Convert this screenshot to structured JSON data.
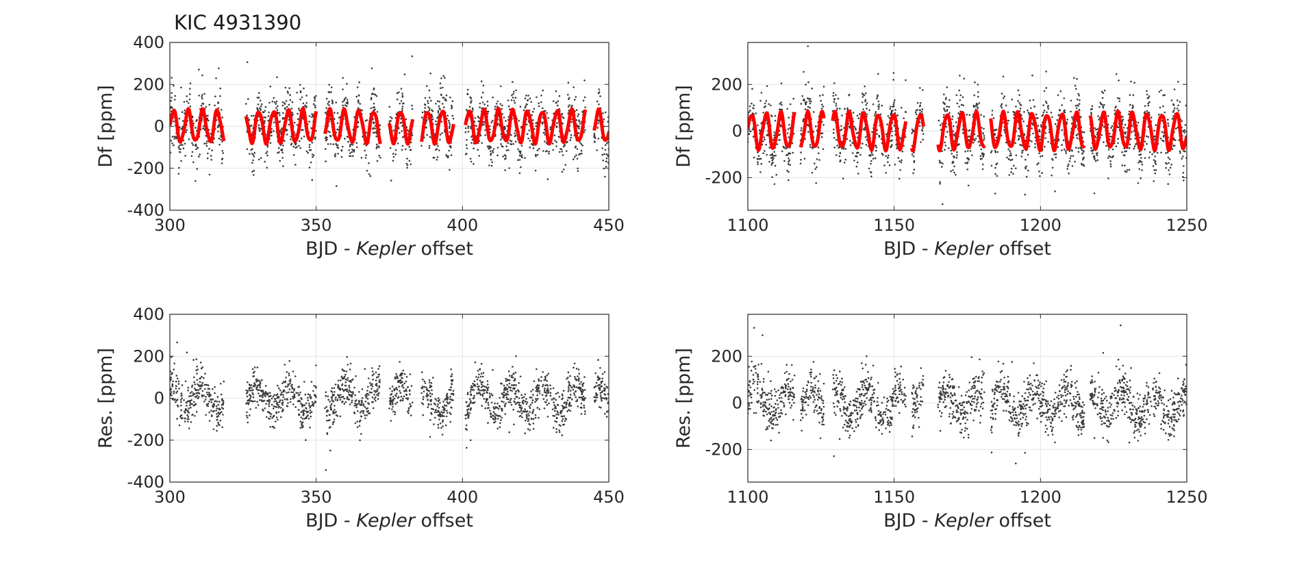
{
  "figure_title": "KIC 4931390",
  "colors": {
    "data": "#3a3a3a",
    "model": "#ff0000",
    "grid": "#e3e3e3",
    "axis": "#262626"
  },
  "chart_data": [
    {
      "type": "scatter",
      "title": "",
      "xlabel_prefix": "BJD -  ",
      "xlabel_italic": "Kepler",
      "xlabel_suffix": " offset",
      "ylabel": "Df [ppm]",
      "xlim": [
        300,
        450
      ],
      "ylim": [
        -400,
        400
      ],
      "xticks": [
        "300",
        "350",
        "400",
        "450"
      ],
      "yticks": [
        "-400",
        "-200",
        "0",
        "200",
        "400"
      ],
      "xtick_values": [
        300,
        350,
        400,
        450
      ],
      "ytick_values": [
        -400,
        -200,
        0,
        200,
        400
      ],
      "grid": true,
      "series": [
        {
          "name": "data",
          "style": "dots",
          "scatter_ppm": 70
        },
        {
          "name": "model",
          "style": "thick-line",
          "amplitude_ppm": 75,
          "period_days": 5.0
        }
      ],
      "segments": [
        [
          300,
          318.5
        ],
        [
          326,
          350
        ],
        [
          353,
          372
        ],
        [
          375,
          383
        ],
        [
          386,
          397
        ],
        [
          401,
          442
        ],
        [
          445,
          450
        ]
      ]
    },
    {
      "type": "scatter",
      "title": "",
      "xlabel_prefix": "BJD -  ",
      "xlabel_italic": "Kepler",
      "xlabel_suffix": " offset",
      "ylabel": "Df [ppm]",
      "xlim": [
        1100,
        1250
      ],
      "ylim": [
        -340,
        380
      ],
      "xticks": [
        "1100",
        "1150",
        "1200",
        "1250"
      ],
      "yticks": [
        "-200",
        "0",
        "200"
      ],
      "xtick_values": [
        1100,
        1150,
        1200,
        1250
      ],
      "ytick_values": [
        -200,
        0,
        200
      ],
      "grid": true,
      "series": [
        {
          "name": "data",
          "style": "dots",
          "scatter_ppm": 65
        },
        {
          "name": "model",
          "style": "thick-line",
          "amplitude_ppm": 75,
          "period_days": 5.0
        }
      ],
      "segments": [
        [
          1100,
          1116
        ],
        [
          1118,
          1126
        ],
        [
          1129,
          1154
        ],
        [
          1156,
          1160
        ],
        [
          1165,
          1181
        ],
        [
          1183,
          1215
        ],
        [
          1217,
          1250
        ]
      ]
    },
    {
      "type": "scatter",
      "title": "",
      "xlabel_prefix": "BJD -  ",
      "xlabel_italic": "Kepler",
      "xlabel_suffix": " offset",
      "ylabel": "Res. [ppm]",
      "xlim": [
        300,
        450
      ],
      "ylim": [
        -400,
        400
      ],
      "xticks": [
        "300",
        "350",
        "400",
        "450"
      ],
      "yticks": [
        "-400",
        "-200",
        "0",
        "200",
        "400"
      ],
      "xtick_values": [
        300,
        350,
        400,
        450
      ],
      "ytick_values": [
        -400,
        -200,
        0,
        200,
        400
      ],
      "grid": true,
      "series": [
        {
          "name": "residuals",
          "style": "dots",
          "scatter_ppm": 45
        }
      ],
      "segments": [
        [
          300,
          318.5
        ],
        [
          326,
          350
        ],
        [
          353,
          372
        ],
        [
          375,
          383
        ],
        [
          386,
          397
        ],
        [
          401,
          442
        ],
        [
          445,
          450
        ]
      ]
    },
    {
      "type": "scatter",
      "title": "",
      "xlabel_prefix": "BJD -  ",
      "xlabel_italic": "Kepler",
      "xlabel_suffix": " offset",
      "ylabel": "Res. [ppm]",
      "xlim": [
        1100,
        1250
      ],
      "ylim": [
        -340,
        380
      ],
      "xticks": [
        "1100",
        "1150",
        "1200",
        "1250"
      ],
      "yticks": [
        "-200",
        "0",
        "200"
      ],
      "xtick_values": [
        1100,
        1150,
        1200,
        1250
      ],
      "ytick_values": [
        -200,
        0,
        200
      ],
      "grid": true,
      "series": [
        {
          "name": "residuals",
          "style": "dots",
          "scatter_ppm": 45
        }
      ],
      "segments": [
        [
          1100,
          1116
        ],
        [
          1118,
          1126
        ],
        [
          1129,
          1154
        ],
        [
          1156,
          1160
        ],
        [
          1165,
          1181
        ],
        [
          1183,
          1215
        ],
        [
          1217,
          1250
        ]
      ]
    }
  ]
}
